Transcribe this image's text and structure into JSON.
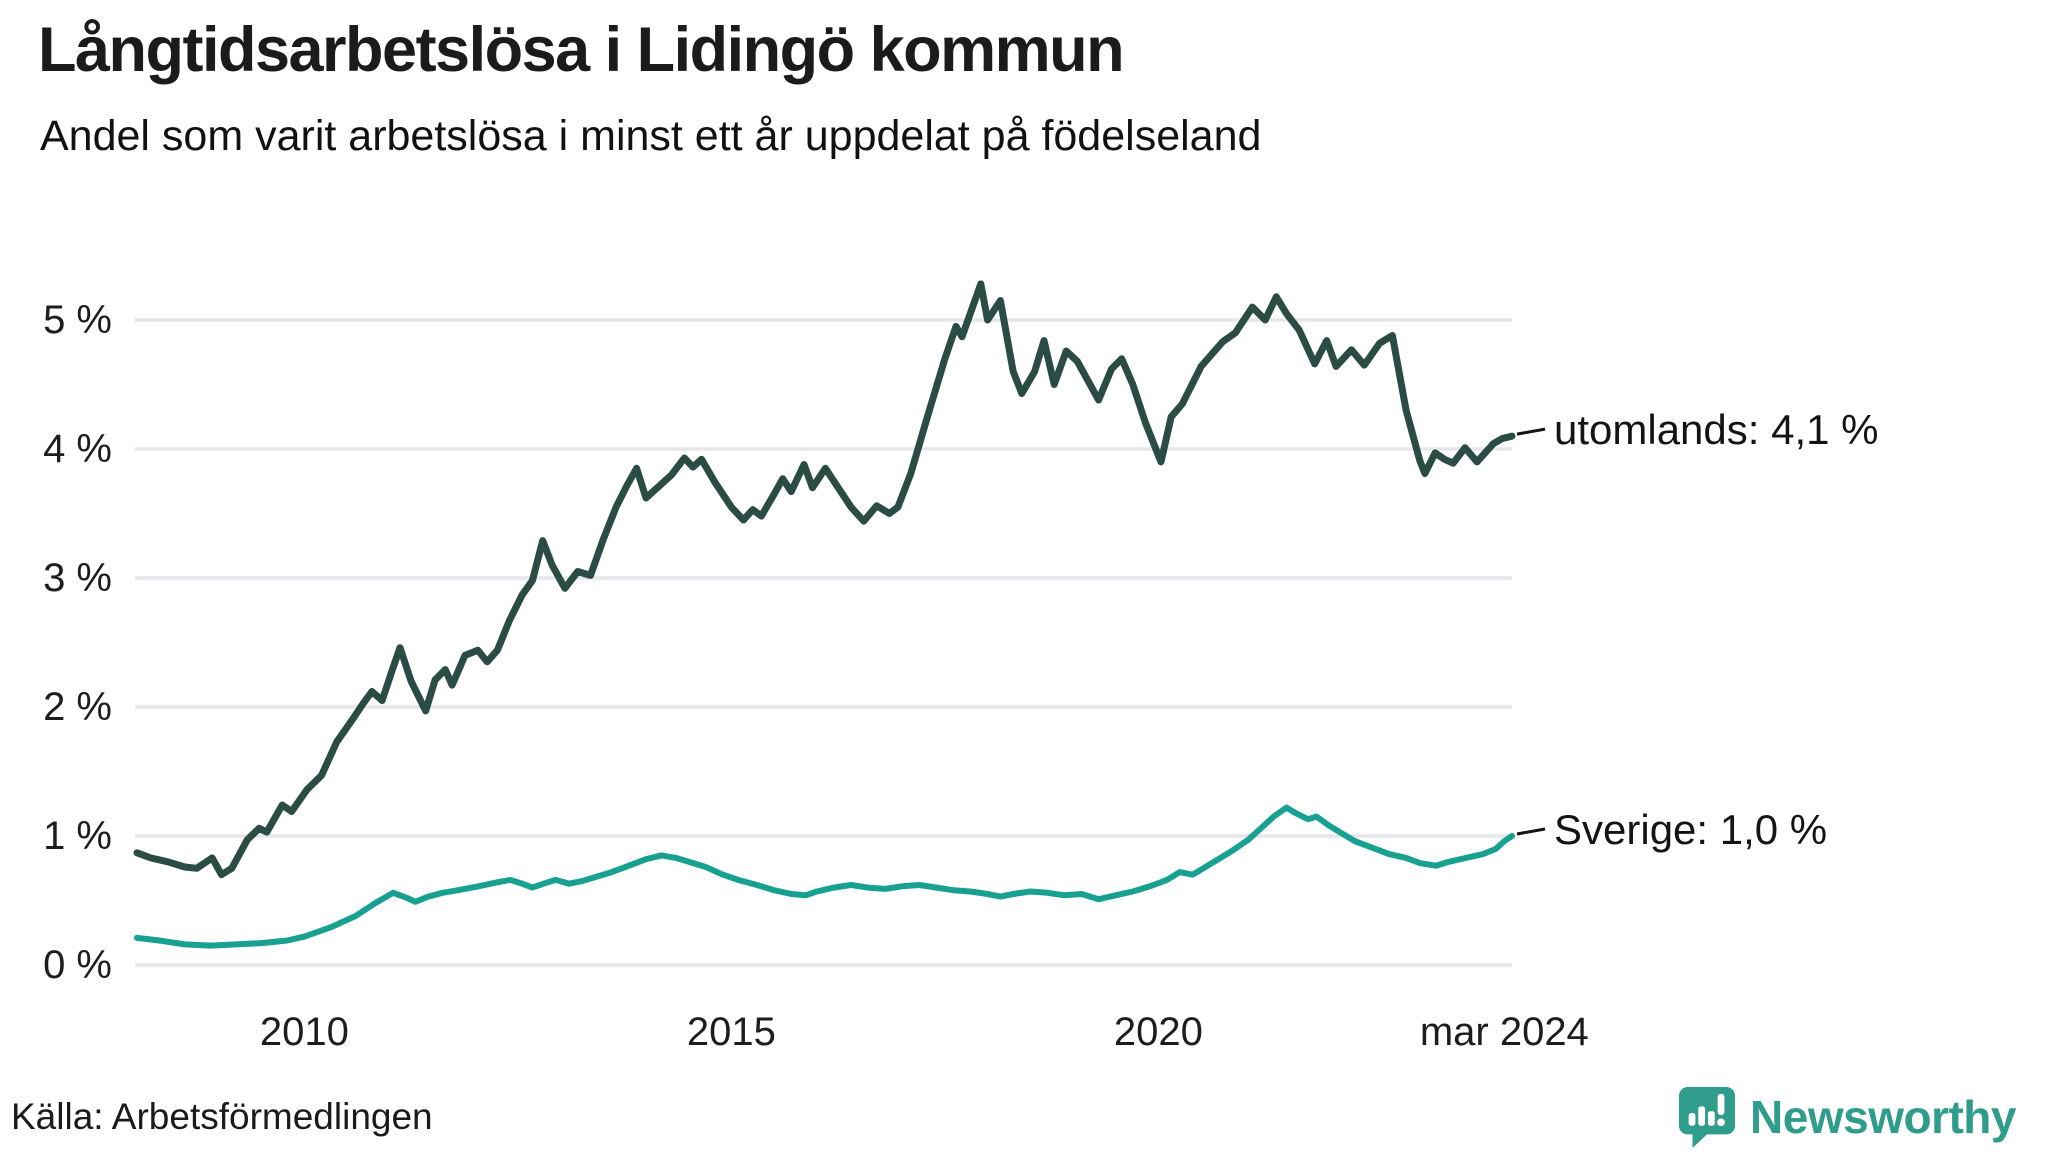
{
  "title": "Långtidsarbetslösa i Lidingö kommun",
  "subtitle": "Andel som varit arbetslösa i minst ett år uppdelat på födelseland",
  "source": {
    "text": "Källa: Arbetsförmedlingen"
  },
  "branding": {
    "name": "Newsworthy",
    "color": "#2F9C8C"
  },
  "colors": {
    "utomlands_line": "#2A4C45",
    "sverige_line": "#18A191",
    "gridline": "#E6E6EC",
    "label_text": "#141414"
  },
  "chart_data": {
    "type": "line",
    "title": "Långtidsarbetslösa i Lidingö kommun",
    "subtitle": "Andel som varit arbetslösa i minst ett år uppdelat på födelseland",
    "xlabel": "",
    "ylabel": "",
    "x_unit": "decimal_year_monthly",
    "x_range": [
      2008.04,
      2024.14
    ],
    "ylim": [
      0,
      5.45
    ],
    "grid": true,
    "legend_position": "end-of-line-labels",
    "y_ticks": [
      {
        "label": "0 %",
        "value": 0
      },
      {
        "label": "1 %",
        "value": 1
      },
      {
        "label": "2 %",
        "value": 2
      },
      {
        "label": "3 %",
        "value": 3
      },
      {
        "label": "4 %",
        "value": 4
      },
      {
        "label": "5 %",
        "value": 5
      }
    ],
    "x_ticks": [
      {
        "label": "2010",
        "t": 2010.0
      },
      {
        "label": "2015",
        "t": 2015.0
      },
      {
        "label": "2020",
        "t": 2020.0
      },
      {
        "label": "mar 2024",
        "t": 2024.05
      }
    ],
    "series": [
      {
        "name": "utomlands",
        "end_label": "utomlands: 4,1 %",
        "last_value_display": "4,1 %",
        "color": "#2A4C45",
        "stroke_width": 7,
        "points": [
          [
            2008.04,
            0.87
          ],
          [
            2008.2,
            0.83
          ],
          [
            2008.4,
            0.8
          ],
          [
            2008.6,
            0.76
          ],
          [
            2008.74,
            0.75
          ],
          [
            2008.92,
            0.83
          ],
          [
            2009.03,
            0.7
          ],
          [
            2009.15,
            0.75
          ],
          [
            2009.33,
            0.97
          ],
          [
            2009.47,
            1.06
          ],
          [
            2009.56,
            1.03
          ],
          [
            2009.74,
            1.24
          ],
          [
            2009.85,
            1.19
          ],
          [
            2010.03,
            1.36
          ],
          [
            2010.2,
            1.47
          ],
          [
            2010.38,
            1.73
          ],
          [
            2010.56,
            1.9
          ],
          [
            2010.68,
            2.02
          ],
          [
            2010.79,
            2.12
          ],
          [
            2010.91,
            2.05
          ],
          [
            2011.03,
            2.29
          ],
          [
            2011.12,
            2.46
          ],
          [
            2011.25,
            2.2
          ],
          [
            2011.42,
            1.97
          ],
          [
            2011.53,
            2.21
          ],
          [
            2011.65,
            2.29
          ],
          [
            2011.73,
            2.17
          ],
          [
            2011.88,
            2.4
          ],
          [
            2012.03,
            2.44
          ],
          [
            2012.14,
            2.35
          ],
          [
            2012.26,
            2.44
          ],
          [
            2012.4,
            2.67
          ],
          [
            2012.55,
            2.87
          ],
          [
            2012.67,
            2.98
          ],
          [
            2012.79,
            3.29
          ],
          [
            2012.9,
            3.1
          ],
          [
            2013.05,
            2.92
          ],
          [
            2013.2,
            3.05
          ],
          [
            2013.35,
            3.02
          ],
          [
            2013.5,
            3.3
          ],
          [
            2013.65,
            3.55
          ],
          [
            2013.78,
            3.72
          ],
          [
            2013.89,
            3.85
          ],
          [
            2014.0,
            3.62
          ],
          [
            2014.15,
            3.71
          ],
          [
            2014.3,
            3.8
          ],
          [
            2014.45,
            3.93
          ],
          [
            2014.55,
            3.86
          ],
          [
            2014.65,
            3.92
          ],
          [
            2014.8,
            3.75
          ],
          [
            2015.0,
            3.55
          ],
          [
            2015.14,
            3.45
          ],
          [
            2015.25,
            3.53
          ],
          [
            2015.35,
            3.48
          ],
          [
            2015.5,
            3.65
          ],
          [
            2015.6,
            3.77
          ],
          [
            2015.7,
            3.67
          ],
          [
            2015.85,
            3.88
          ],
          [
            2015.95,
            3.7
          ],
          [
            2016.1,
            3.85
          ],
          [
            2016.25,
            3.7
          ],
          [
            2016.4,
            3.55
          ],
          [
            2016.55,
            3.44
          ],
          [
            2016.7,
            3.56
          ],
          [
            2016.85,
            3.5
          ],
          [
            2016.95,
            3.55
          ],
          [
            2017.1,
            3.81
          ],
          [
            2017.3,
            4.26
          ],
          [
            2017.5,
            4.7
          ],
          [
            2017.63,
            4.95
          ],
          [
            2017.7,
            4.87
          ],
          [
            2017.92,
            5.28
          ],
          [
            2018.0,
            5.0
          ],
          [
            2018.15,
            5.15
          ],
          [
            2018.3,
            4.6
          ],
          [
            2018.4,
            4.43
          ],
          [
            2018.55,
            4.6
          ],
          [
            2018.66,
            4.84
          ],
          [
            2018.78,
            4.5
          ],
          [
            2018.92,
            4.76
          ],
          [
            2019.05,
            4.68
          ],
          [
            2019.3,
            4.38
          ],
          [
            2019.45,
            4.62
          ],
          [
            2019.57,
            4.7
          ],
          [
            2019.7,
            4.5
          ],
          [
            2019.85,
            4.2
          ],
          [
            2020.03,
            3.9
          ],
          [
            2020.15,
            4.25
          ],
          [
            2020.28,
            4.35
          ],
          [
            2020.5,
            4.64
          ],
          [
            2020.75,
            4.83
          ],
          [
            2020.9,
            4.9
          ],
          [
            2021.1,
            5.1
          ],
          [
            2021.25,
            5.0
          ],
          [
            2021.38,
            5.18
          ],
          [
            2021.5,
            5.05
          ],
          [
            2021.65,
            4.92
          ],
          [
            2021.83,
            4.66
          ],
          [
            2021.97,
            4.84
          ],
          [
            2022.08,
            4.64
          ],
          [
            2022.26,
            4.77
          ],
          [
            2022.41,
            4.65
          ],
          [
            2022.59,
            4.82
          ],
          [
            2022.74,
            4.88
          ],
          [
            2022.9,
            4.3
          ],
          [
            2023.06,
            3.91
          ],
          [
            2023.12,
            3.81
          ],
          [
            2023.24,
            3.97
          ],
          [
            2023.35,
            3.92
          ],
          [
            2023.45,
            3.89
          ],
          [
            2023.59,
            4.01
          ],
          [
            2023.73,
            3.9
          ],
          [
            2023.92,
            4.04
          ],
          [
            2024.02,
            4.08
          ],
          [
            2024.14,
            4.1
          ]
        ]
      },
      {
        "name": "Sverige",
        "end_label": "Sverige: 1,0 %",
        "last_value_display": "1,0 %",
        "color": "#18A191",
        "stroke_width": 6,
        "points": [
          [
            2008.04,
            0.21
          ],
          [
            2008.3,
            0.19
          ],
          [
            2008.6,
            0.16
          ],
          [
            2008.9,
            0.15
          ],
          [
            2009.2,
            0.16
          ],
          [
            2009.5,
            0.17
          ],
          [
            2009.8,
            0.19
          ],
          [
            2010.0,
            0.22
          ],
          [
            2010.3,
            0.29
          ],
          [
            2010.6,
            0.38
          ],
          [
            2010.83,
            0.48
          ],
          [
            2011.04,
            0.56
          ],
          [
            2011.2,
            0.52
          ],
          [
            2011.3,
            0.49
          ],
          [
            2011.45,
            0.53
          ],
          [
            2011.62,
            0.56
          ],
          [
            2011.8,
            0.58
          ],
          [
            2012.04,
            0.61
          ],
          [
            2012.25,
            0.64
          ],
          [
            2012.41,
            0.66
          ],
          [
            2012.55,
            0.63
          ],
          [
            2012.67,
            0.6
          ],
          [
            2012.8,
            0.63
          ],
          [
            2012.94,
            0.66
          ],
          [
            2013.1,
            0.63
          ],
          [
            2013.25,
            0.65
          ],
          [
            2013.4,
            0.68
          ],
          [
            2013.6,
            0.72
          ],
          [
            2013.8,
            0.77
          ],
          [
            2014.0,
            0.82
          ],
          [
            2014.18,
            0.85
          ],
          [
            2014.35,
            0.83
          ],
          [
            2014.5,
            0.8
          ],
          [
            2014.7,
            0.76
          ],
          [
            2014.9,
            0.7
          ],
          [
            2015.08,
            0.66
          ],
          [
            2015.3,
            0.62
          ],
          [
            2015.5,
            0.58
          ],
          [
            2015.7,
            0.55
          ],
          [
            2015.87,
            0.54
          ],
          [
            2016.0,
            0.57
          ],
          [
            2016.2,
            0.6
          ],
          [
            2016.4,
            0.62
          ],
          [
            2016.6,
            0.6
          ],
          [
            2016.8,
            0.59
          ],
          [
            2017.0,
            0.61
          ],
          [
            2017.2,
            0.62
          ],
          [
            2017.4,
            0.6
          ],
          [
            2017.6,
            0.58
          ],
          [
            2017.8,
            0.57
          ],
          [
            2018.0,
            0.55
          ],
          [
            2018.15,
            0.53
          ],
          [
            2018.3,
            0.55
          ],
          [
            2018.5,
            0.57
          ],
          [
            2018.7,
            0.56
          ],
          [
            2018.9,
            0.54
          ],
          [
            2019.1,
            0.55
          ],
          [
            2019.3,
            0.51
          ],
          [
            2019.5,
            0.54
          ],
          [
            2019.7,
            0.57
          ],
          [
            2019.9,
            0.61
          ],
          [
            2020.1,
            0.66
          ],
          [
            2020.25,
            0.72
          ],
          [
            2020.4,
            0.7
          ],
          [
            2020.6,
            0.78
          ],
          [
            2020.85,
            0.88
          ],
          [
            2021.05,
            0.97
          ],
          [
            2021.2,
            1.06
          ],
          [
            2021.35,
            1.15
          ],
          [
            2021.5,
            1.22
          ],
          [
            2021.6,
            1.18
          ],
          [
            2021.75,
            1.13
          ],
          [
            2021.85,
            1.15
          ],
          [
            2022.0,
            1.08
          ],
          [
            2022.15,
            1.02
          ],
          [
            2022.3,
            0.96
          ],
          [
            2022.5,
            0.91
          ],
          [
            2022.7,
            0.86
          ],
          [
            2022.9,
            0.83
          ],
          [
            2023.06,
            0.79
          ],
          [
            2023.25,
            0.77
          ],
          [
            2023.4,
            0.8
          ],
          [
            2023.6,
            0.83
          ],
          [
            2023.8,
            0.86
          ],
          [
            2023.95,
            0.9
          ],
          [
            2024.05,
            0.96
          ],
          [
            2024.14,
            1.0
          ]
        ]
      }
    ]
  }
}
